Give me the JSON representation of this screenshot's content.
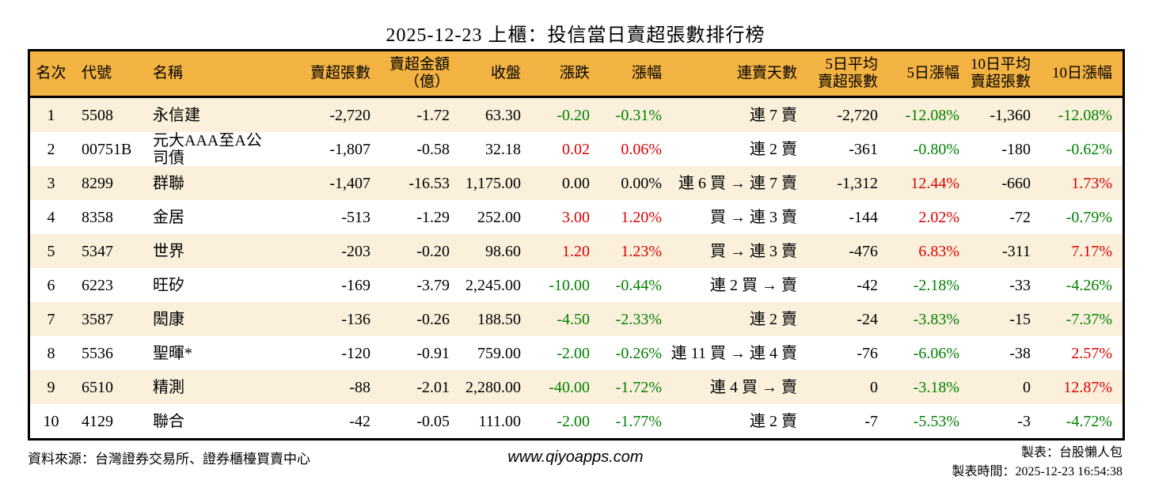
{
  "title": "2025-12-23 上櫃：投信當日賣超張數排行榜",
  "colors": {
    "header_bg": "#f3b342",
    "row_alt_bg": "#faf0db",
    "up_red": "#dd0000",
    "down_green": "#008000",
    "border": "#000000"
  },
  "chart_data": {
    "type": "table",
    "title": "2025-12-23 上櫃：投信當日賣超張數排行榜",
    "columns": [
      {
        "key": "rank",
        "label": "名次"
      },
      {
        "key": "code",
        "label": "代號"
      },
      {
        "key": "name",
        "label": "名稱"
      },
      {
        "key": "sell_volume",
        "label": "賣超張數"
      },
      {
        "key": "sell_amount_100m",
        "label": "賣超金額\n（億）"
      },
      {
        "key": "close",
        "label": "收盤"
      },
      {
        "key": "change",
        "label": "漲跌"
      },
      {
        "key": "change_pct",
        "label": "漲幅"
      },
      {
        "key": "sell_streak",
        "label": "連賣天數"
      },
      {
        "key": "avg5_sell_volume",
        "label": "5日平均\n賣超張數"
      },
      {
        "key": "chg5_pct",
        "label": "5日漲幅"
      },
      {
        "key": "avg10_sell_volume",
        "label": "10日平均\n賣超張數"
      },
      {
        "key": "chg10_pct",
        "label": "10日漲幅"
      }
    ],
    "rows": [
      {
        "rank": "1",
        "code": "5508",
        "name": "永信建",
        "sell_volume": "-2,720",
        "sell_amount_100m": "-1.72",
        "close": "63.30",
        "change": "-0.20",
        "change_color": "down",
        "change_pct": "-0.31%",
        "change_pct_color": "down",
        "sell_streak": "連 7 賣",
        "avg5_sell_volume": "-2,720",
        "chg5_pct": "-12.08%",
        "chg5_pct_color": "down",
        "avg10_sell_volume": "-1,360",
        "chg10_pct": "-12.08%",
        "chg10_pct_color": "down"
      },
      {
        "rank": "2",
        "code": "00751B",
        "name": "元大AAA至A公司債",
        "sell_volume": "-1,807",
        "sell_amount_100m": "-0.58",
        "close": "32.18",
        "change": "0.02",
        "change_color": "up",
        "change_pct": "0.06%",
        "change_pct_color": "up",
        "sell_streak": "連 2 賣",
        "avg5_sell_volume": "-361",
        "chg5_pct": "-0.80%",
        "chg5_pct_color": "down",
        "avg10_sell_volume": "-180",
        "chg10_pct": "-0.62%",
        "chg10_pct_color": "down"
      },
      {
        "rank": "3",
        "code": "8299",
        "name": "群聯",
        "sell_volume": "-1,407",
        "sell_amount_100m": "-16.53",
        "close": "1,175.00",
        "change": "0.00",
        "change_color": "flat",
        "change_pct": "0.00%",
        "change_pct_color": "flat",
        "sell_streak": "連 6 買 → 連 7 賣",
        "avg5_sell_volume": "-1,312",
        "chg5_pct": "12.44%",
        "chg5_pct_color": "up",
        "avg10_sell_volume": "-660",
        "chg10_pct": "1.73%",
        "chg10_pct_color": "up"
      },
      {
        "rank": "4",
        "code": "8358",
        "name": "金居",
        "sell_volume": "-513",
        "sell_amount_100m": "-1.29",
        "close": "252.00",
        "change": "3.00",
        "change_color": "up",
        "change_pct": "1.20%",
        "change_pct_color": "up",
        "sell_streak": "買 → 連 3 賣",
        "avg5_sell_volume": "-144",
        "chg5_pct": "2.02%",
        "chg5_pct_color": "up",
        "avg10_sell_volume": "-72",
        "chg10_pct": "-0.79%",
        "chg10_pct_color": "down"
      },
      {
        "rank": "5",
        "code": "5347",
        "name": "世界",
        "sell_volume": "-203",
        "sell_amount_100m": "-0.20",
        "close": "98.60",
        "change": "1.20",
        "change_color": "up",
        "change_pct": "1.23%",
        "change_pct_color": "up",
        "sell_streak": "買 → 連 3 賣",
        "avg5_sell_volume": "-476",
        "chg5_pct": "6.83%",
        "chg5_pct_color": "up",
        "avg10_sell_volume": "-311",
        "chg10_pct": "7.17%",
        "chg10_pct_color": "up"
      },
      {
        "rank": "6",
        "code": "6223",
        "name": "旺矽",
        "sell_volume": "-169",
        "sell_amount_100m": "-3.79",
        "close": "2,245.00",
        "change": "-10.00",
        "change_color": "down",
        "change_pct": "-0.44%",
        "change_pct_color": "down",
        "sell_streak": "連 2 買 → 賣",
        "avg5_sell_volume": "-42",
        "chg5_pct": "-2.18%",
        "chg5_pct_color": "down",
        "avg10_sell_volume": "-33",
        "chg10_pct": "-4.26%",
        "chg10_pct_color": "down"
      },
      {
        "rank": "7",
        "code": "3587",
        "name": "閎康",
        "sell_volume": "-136",
        "sell_amount_100m": "-0.26",
        "close": "188.50",
        "change": "-4.50",
        "change_color": "down",
        "change_pct": "-2.33%",
        "change_pct_color": "down",
        "sell_streak": "連 2 賣",
        "avg5_sell_volume": "-24",
        "chg5_pct": "-3.83%",
        "chg5_pct_color": "down",
        "avg10_sell_volume": "-15",
        "chg10_pct": "-7.37%",
        "chg10_pct_color": "down"
      },
      {
        "rank": "8",
        "code": "5536",
        "name": "聖暉*",
        "sell_volume": "-120",
        "sell_amount_100m": "-0.91",
        "close": "759.00",
        "change": "-2.00",
        "change_color": "down",
        "change_pct": "-0.26%",
        "change_pct_color": "down",
        "sell_streak": "連 11 買 → 連 4 賣",
        "avg5_sell_volume": "-76",
        "chg5_pct": "-6.06%",
        "chg5_pct_color": "down",
        "avg10_sell_volume": "-38",
        "chg10_pct": "2.57%",
        "chg10_pct_color": "up"
      },
      {
        "rank": "9",
        "code": "6510",
        "name": "精測",
        "sell_volume": "-88",
        "sell_amount_100m": "-2.01",
        "close": "2,280.00",
        "change": "-40.00",
        "change_color": "down",
        "change_pct": "-1.72%",
        "change_pct_color": "down",
        "sell_streak": "連 4 買 → 賣",
        "avg5_sell_volume": "0",
        "chg5_pct": "-3.18%",
        "chg5_pct_color": "down",
        "avg10_sell_volume": "0",
        "chg10_pct": "12.87%",
        "chg10_pct_color": "up"
      },
      {
        "rank": "10",
        "code": "4129",
        "name": "聯合",
        "sell_volume": "-42",
        "sell_amount_100m": "-0.05",
        "close": "111.00",
        "change": "-2.00",
        "change_color": "down",
        "change_pct": "-1.77%",
        "change_pct_color": "down",
        "sell_streak": "連 2 賣",
        "avg5_sell_volume": "-7",
        "chg5_pct": "-5.53%",
        "chg5_pct_color": "down",
        "avg10_sell_volume": "-3",
        "chg10_pct": "-4.72%",
        "chg10_pct_color": "down"
      }
    ]
  },
  "footer": {
    "source": "資料來源：台灣證券交易所、證券櫃檯買賣中心",
    "website": "www.qiyoapps.com",
    "maker": "製表：台股懶人包",
    "generated_at": "製表時間：2025-12-23 16:54:38"
  }
}
